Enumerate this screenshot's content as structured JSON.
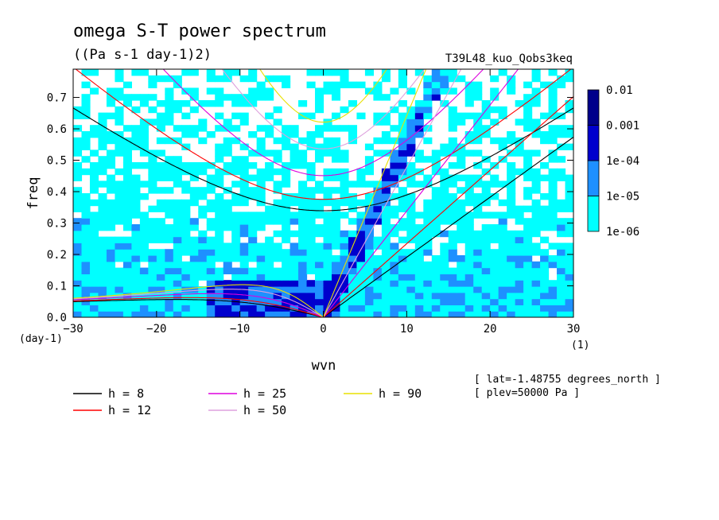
{
  "chart_data": {
    "type": "heatmap",
    "title": "omega S-T power spectrum",
    "units": "((Pa s-1 day-1)2)",
    "run_label": "T39L48_kuo_Qobs3keq",
    "xlabel": "wvn",
    "ylabel": "freq",
    "x_unit_label": "(1)",
    "y_unit_label": "(day-1)",
    "xlim": [
      -30,
      30
    ],
    "ylim": [
      0,
      0.79
    ],
    "x_ticks": [
      -30,
      -20,
      -10,
      0,
      10,
      20,
      30
    ],
    "x_tick_labels": [
      "-30",
      "-20",
      "-10",
      "0",
      "10",
      "20",
      "30"
    ],
    "y_ticks": [
      0,
      0.1,
      0.2,
      0.3,
      0.4,
      0.5,
      0.6,
      0.7
    ],
    "y_tick_labels": [
      "0.0",
      "0.1",
      "0.2",
      "0.3",
      "0.4",
      "0.5",
      "0.6",
      "0.7"
    ],
    "colorbar": {
      "levels": [
        "1e-06",
        "1e-05",
        "1e-04",
        "0.001",
        "0.01"
      ],
      "colors": [
        "#00ffff",
        "#1e90ff",
        "#0000cd",
        "#00008b",
        "#3a0fa0"
      ]
    },
    "series": [
      {
        "name": "h =  8",
        "color": "#000000"
      },
      {
        "name": "h = 12",
        "color": "#ff0000"
      },
      {
        "name": "h = 25",
        "color": "#dd00dd"
      },
      {
        "name": "h = 50",
        "color": "#dda0dd"
      },
      {
        "name": "h = 90",
        "color": "#e8e000"
      }
    ],
    "annotations": [
      "[ lat=-1.48755 degrees_north ]",
      "[ plev=50000 Pa ]"
    ]
  }
}
